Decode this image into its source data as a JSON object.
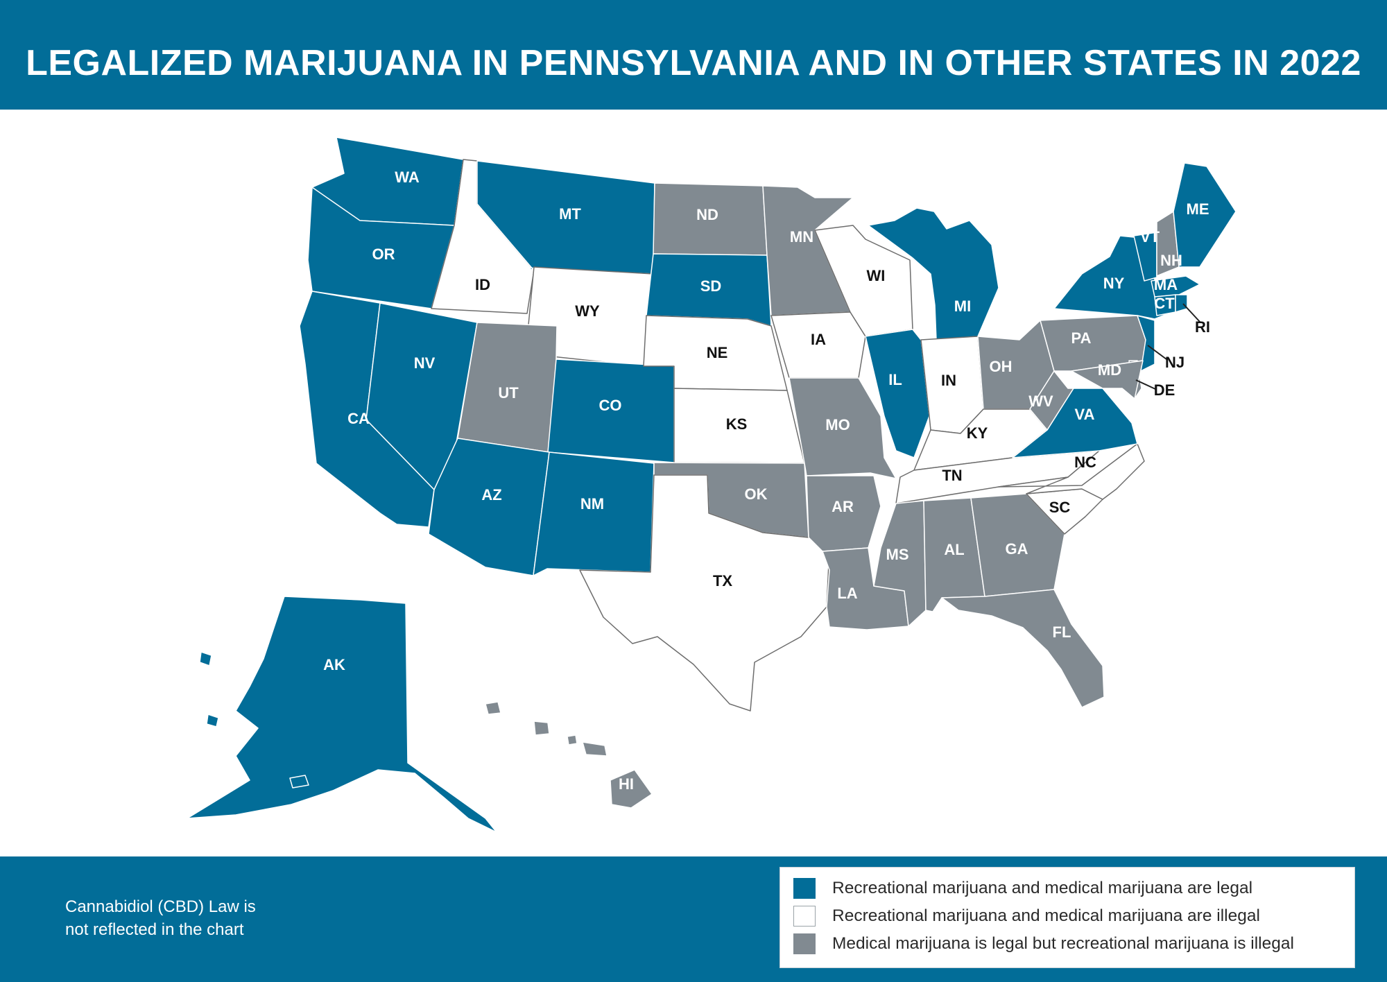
{
  "header": {
    "title": "LEGALIZED MARIJUANA IN PENNSYLVANIA AND IN OTHER STATES IN 2022"
  },
  "colors": {
    "header_bg": "#026d98",
    "recreational_legal": "#026d98",
    "illegal": "#ffffff",
    "medical_only": "#818a91",
    "border": "#ffffff",
    "illegal_border": "#6d6d6d"
  },
  "legend": [
    {
      "key": "recreational_legal",
      "label": "Recreational marijuana and medical marijuana are legal"
    },
    {
      "key": "illegal",
      "label": "Recreational marijuana and medical marijuana are illegal"
    },
    {
      "key": "medical_only",
      "label": "Medical marijuana is legal but recreational marijuana is illegal"
    }
  ],
  "footer": {
    "note_line1": "Cannabidiol (CBD) Law is",
    "note_line2": "not reflected in the chart"
  },
  "states": [
    {
      "abbr": "WA",
      "status": "recreational_legal"
    },
    {
      "abbr": "OR",
      "status": "recreational_legal"
    },
    {
      "abbr": "CA",
      "status": "recreational_legal"
    },
    {
      "abbr": "NV",
      "status": "recreational_legal"
    },
    {
      "abbr": "ID",
      "status": "illegal"
    },
    {
      "abbr": "MT",
      "status": "recreational_legal"
    },
    {
      "abbr": "WY",
      "status": "illegal"
    },
    {
      "abbr": "UT",
      "status": "medical_only"
    },
    {
      "abbr": "CO",
      "status": "recreational_legal"
    },
    {
      "abbr": "AZ",
      "status": "recreational_legal"
    },
    {
      "abbr": "NM",
      "status": "recreational_legal"
    },
    {
      "abbr": "ND",
      "status": "medical_only"
    },
    {
      "abbr": "SD",
      "status": "recreational_legal"
    },
    {
      "abbr": "NE",
      "status": "illegal"
    },
    {
      "abbr": "KS",
      "status": "illegal"
    },
    {
      "abbr": "OK",
      "status": "medical_only"
    },
    {
      "abbr": "TX",
      "status": "illegal"
    },
    {
      "abbr": "MN",
      "status": "medical_only"
    },
    {
      "abbr": "IA",
      "status": "illegal"
    },
    {
      "abbr": "MO",
      "status": "medical_only"
    },
    {
      "abbr": "AR",
      "status": "medical_only"
    },
    {
      "abbr": "LA",
      "status": "medical_only"
    },
    {
      "abbr": "WI",
      "status": "illegal"
    },
    {
      "abbr": "IL",
      "status": "recreational_legal"
    },
    {
      "abbr": "MI",
      "status": "recreational_legal"
    },
    {
      "abbr": "IN",
      "status": "illegal"
    },
    {
      "abbr": "OH",
      "status": "medical_only"
    },
    {
      "abbr": "KY",
      "status": "illegal"
    },
    {
      "abbr": "TN",
      "status": "illegal"
    },
    {
      "abbr": "MS",
      "status": "medical_only"
    },
    {
      "abbr": "AL",
      "status": "medical_only"
    },
    {
      "abbr": "GA",
      "status": "medical_only"
    },
    {
      "abbr": "FL",
      "status": "medical_only"
    },
    {
      "abbr": "SC",
      "status": "illegal"
    },
    {
      "abbr": "NC",
      "status": "illegal"
    },
    {
      "abbr": "VA",
      "status": "recreational_legal"
    },
    {
      "abbr": "WV",
      "status": "medical_only"
    },
    {
      "abbr": "PA",
      "status": "medical_only"
    },
    {
      "abbr": "NY",
      "status": "recreational_legal"
    },
    {
      "abbr": "VT",
      "status": "recreational_legal"
    },
    {
      "abbr": "NH",
      "status": "medical_only"
    },
    {
      "abbr": "ME",
      "status": "recreational_legal"
    },
    {
      "abbr": "MA",
      "status": "recreational_legal"
    },
    {
      "abbr": "CT",
      "status": "recreational_legal"
    },
    {
      "abbr": "RI",
      "status": "recreational_legal"
    },
    {
      "abbr": "NJ",
      "status": "recreational_legal"
    },
    {
      "abbr": "DE",
      "status": "medical_only"
    },
    {
      "abbr": "MD",
      "status": "medical_only"
    },
    {
      "abbr": "AK",
      "status": "recreational_legal"
    },
    {
      "abbr": "HI",
      "status": "medical_only"
    }
  ]
}
